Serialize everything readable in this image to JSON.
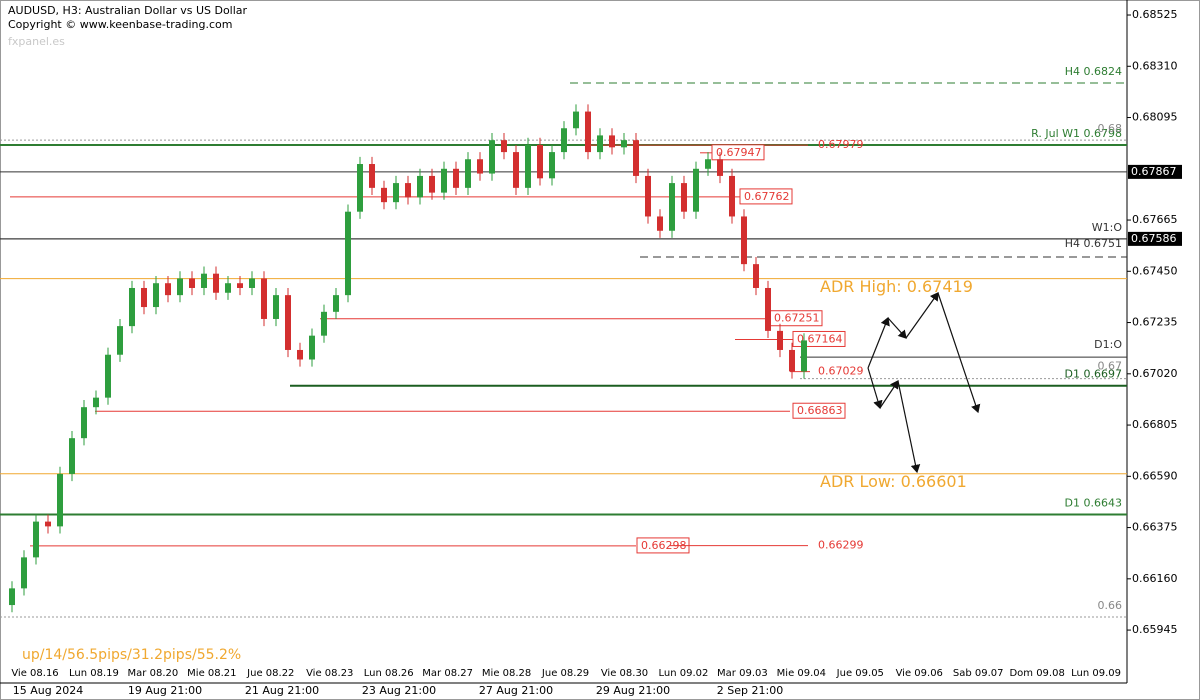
{
  "chart_data": {
    "type": "candlestick",
    "title": "AUDUSD, H3:  Australian Dollar vs US Dollar",
    "subtitle": "Copyright © www.keenbase-trading.com",
    "watermark": "fxpanel.es",
    "footer": "up/14/56.5pips/31.2pips/55.2%",
    "bull_color": "#2e9e3e",
    "bear_color": "#d32f2f",
    "ylim": [
      0.65723,
      0.68588
    ],
    "yticks": [
      0.68525,
      {
        "value": 0.6831,
        "label": "0.68310"
      },
      0.68095,
      0.67665,
      {
        "value": 0.6745,
        "label": "0.67450"
      },
      0.67235,
      {
        "value": 0.6702,
        "label": "0.67020"
      },
      0.66805,
      {
        "value": 0.6659,
        "label": "0.66590"
      },
      0.66375,
      {
        "value": 0.6616,
        "label": "0.66160"
      },
      0.65945
    ],
    "axis_marks": [
      0.67867,
      0.67586
    ],
    "day_labels": [
      "Vie 08.16",
      "Lun 08.19",
      "Mar 08.20",
      "Mie 08.21",
      "Jue 08.22",
      "Vie 08.23",
      "Lun 08.26",
      "Mar 08.27",
      "Mie 08.28",
      "Jue 08.29",
      "Vie 08.30",
      "Lun 09.02",
      "Mar 09.03",
      "Mie 09.04",
      "Jue 09.05",
      "Vie 09.06",
      "Sab 09.07",
      "Dom 09.08",
      "Lun 09.09"
    ],
    "date_labels": [
      "15 Aug 2024",
      "19 Aug 21:00",
      "21 Aug 21:00",
      "23 Aug 21:00",
      "27 Aug 21:00",
      "29 Aug 21:00",
      "2 Sep 21:00"
    ],
    "open": [
      0.6605,
      0.6612,
      0.6625,
      0.664,
      0.6638,
      0.666,
      0.6675,
      0.6688,
      0.6692,
      0.671,
      0.6722,
      0.6738,
      0.673,
      0.674,
      0.6735,
      0.6742,
      0.6738,
      0.6744,
      0.6736,
      0.674,
      0.6738,
      0.6742,
      0.6725,
      0.6735,
      0.6712,
      0.6708,
      0.6718,
      0.6728,
      0.6735,
      0.677,
      0.679,
      0.678,
      0.6774,
      0.6782,
      0.6776,
      0.6785,
      0.6778,
      0.6788,
      0.678,
      0.6792,
      0.6786,
      0.68,
      0.6795,
      0.678,
      0.6798,
      0.6784,
      0.6795,
      0.6805,
      0.6812,
      0.6795,
      0.6802,
      0.6797,
      0.68,
      0.6785,
      0.6768,
      0.6762,
      0.6782,
      0.677,
      0.6788,
      0.6792,
      0.6785,
      0.6768,
      0.6748,
      0.6738,
      0.672,
      0.6712,
      0.6703
    ],
    "high": [
      0.6615,
      0.6628,
      0.6643,
      0.6643,
      0.6663,
      0.6678,
      0.6691,
      0.6695,
      0.6713,
      0.6725,
      0.6741,
      0.6741,
      0.6743,
      0.6743,
      0.6745,
      0.6745,
      0.6747,
      0.6747,
      0.6743,
      0.6743,
      0.6745,
      0.6745,
      0.6738,
      0.6738,
      0.6715,
      0.6721,
      0.6731,
      0.6738,
      0.6773,
      0.6793,
      0.6793,
      0.6783,
      0.6785,
      0.6785,
      0.6788,
      0.6788,
      0.6791,
      0.6791,
      0.6795,
      0.6795,
      0.6803,
      0.6803,
      0.6798,
      0.6801,
      0.6801,
      0.6798,
      0.6808,
      0.6815,
      0.6815,
      0.6805,
      0.6805,
      0.6803,
      0.6803,
      0.6788,
      0.6771,
      0.6785,
      0.6785,
      0.6791,
      0.6795,
      0.6795,
      0.6788,
      0.6771,
      0.6751,
      0.6741,
      0.6723,
      0.6715,
      0.6719
    ],
    "low": [
      0.6602,
      0.6609,
      0.6622,
      0.6635,
      0.6635,
      0.6657,
      0.6672,
      0.6685,
      0.6689,
      0.6707,
      0.6719,
      0.6727,
      0.6727,
      0.6732,
      0.6732,
      0.6735,
      0.6735,
      0.6733,
      0.6733,
      0.6735,
      0.6735,
      0.6722,
      0.6722,
      0.6709,
      0.6705,
      0.6705,
      0.6715,
      0.6725,
      0.6732,
      0.6767,
      0.6777,
      0.6771,
      0.6771,
      0.6773,
      0.6773,
      0.6775,
      0.6775,
      0.6777,
      0.6777,
      0.6783,
      0.6783,
      0.6792,
      0.6777,
      0.6777,
      0.6781,
      0.6781,
      0.6792,
      0.6802,
      0.6792,
      0.6792,
      0.6794,
      0.6794,
      0.6782,
      0.6765,
      0.6759,
      0.6759,
      0.6767,
      0.6767,
      0.6785,
      0.6782,
      0.6765,
      0.6745,
      0.6735,
      0.6717,
      0.6709,
      0.67,
      0.67
    ],
    "close": [
      0.6612,
      0.6625,
      0.664,
      0.6638,
      0.666,
      0.6675,
      0.6688,
      0.6692,
      0.671,
      0.6722,
      0.6738,
      0.673,
      0.674,
      0.6735,
      0.6742,
      0.6738,
      0.6744,
      0.6736,
      0.674,
      0.6738,
      0.6742,
      0.6725,
      0.6735,
      0.6712,
      0.6708,
      0.6718,
      0.6728,
      0.6735,
      0.677,
      0.679,
      0.678,
      0.6774,
      0.6782,
      0.6776,
      0.6785,
      0.6778,
      0.6788,
      0.678,
      0.6792,
      0.6786,
      0.68,
      0.6795,
      0.678,
      0.6798,
      0.6784,
      0.6795,
      0.6805,
      0.6812,
      0.6795,
      0.6802,
      0.6797,
      0.68,
      0.6785,
      0.6768,
      0.6762,
      0.6782,
      0.677,
      0.6788,
      0.6792,
      0.6785,
      0.6768,
      0.6748,
      0.6738,
      0.672,
      0.6712,
      0.6703,
      0.6716
    ],
    "levels": [
      {
        "label": "H4 0.6824",
        "value": 0.6824,
        "color": "#2e7d32",
        "style": "dashed"
      },
      {
        "label": "R. Jul W1 0.6798",
        "value": 0.6798,
        "color": "#2e7d32",
        "style": "thick"
      },
      {
        "label": "0.68",
        "value": 0.68,
        "color": "#999999",
        "style": "dotted"
      },
      {
        "label": "W1:O",
        "value": 0.67586,
        "color": "#333333",
        "style": "solid"
      },
      {
        "label": "H4 0.6751",
        "value": 0.6751,
        "color": "#333333",
        "style": "dashed"
      },
      {
        "label": "ADR High: 0.67419",
        "value": 0.67419,
        "color": "#f0a830",
        "style": "solid"
      },
      {
        "label": "D1:O",
        "value": 0.6709,
        "color": "#333333",
        "style": "solid"
      },
      {
        "label": "0.67",
        "value": 0.67,
        "color": "#999999",
        "style": "dotted"
      },
      {
        "label": "D1 0.6697",
        "value": 0.6697,
        "color": "#1b5e20",
        "style": "thick"
      },
      {
        "label": "ADR Low: 0.66601",
        "value": 0.66601,
        "color": "#f0a830",
        "style": "solid"
      },
      {
        "label": "D1 0.6643",
        "value": 0.6643,
        "color": "#2e7d32",
        "style": "thick"
      },
      {
        "label": "0.66",
        "value": 0.66,
        "color": "#999999",
        "style": "dotted"
      }
    ],
    "red_levels": [
      {
        "value": 0.67979,
        "style": "plain"
      },
      {
        "value": 0.67947,
        "style": "box"
      },
      {
        "value": 0.67762,
        "style": "box"
      },
      {
        "value": 0.67251,
        "style": "box"
      },
      {
        "value": 0.67164,
        "style": "box"
      },
      {
        "value": 0.67029,
        "style": "plain"
      },
      {
        "value": 0.66863,
        "style": "box"
      },
      {
        "value": 0.66298,
        "style": "box"
      },
      {
        "value": 0.66299,
        "style": "plain"
      }
    ],
    "red_color": "#e53935"
  }
}
